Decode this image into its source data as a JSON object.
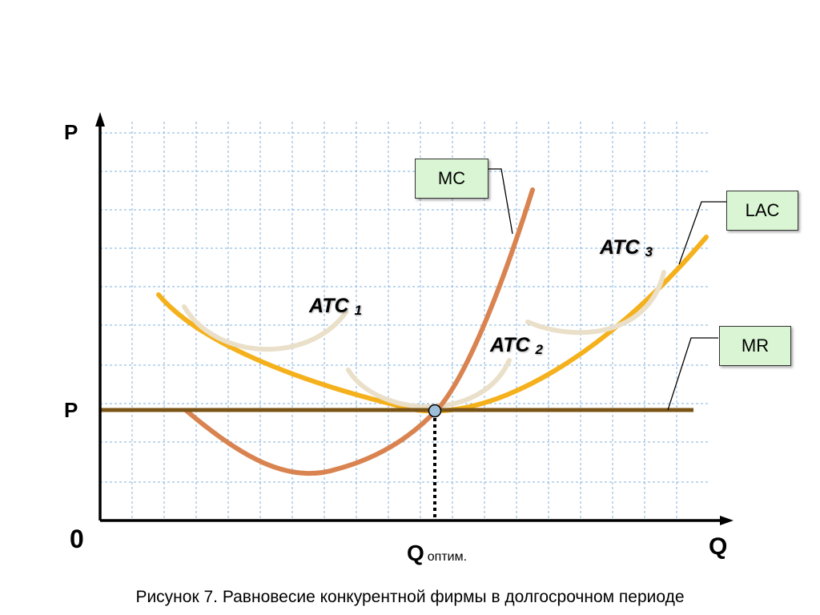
{
  "axes": {
    "y_label_top": "P",
    "y_label_price": "P",
    "origin": "0",
    "x_label": "Q",
    "x_opt_main": "Q",
    "x_opt_sub": "оптим."
  },
  "curves": {
    "mc": {
      "label": "MC",
      "color": "#d98350"
    },
    "lac": {
      "label": "LAC",
      "color": "#f5b11c"
    },
    "mr": {
      "label": "MR",
      "color": "#7a5416"
    },
    "atc1": {
      "name": "ATC",
      "index": "1",
      "color": "#eadfc9"
    },
    "atc2": {
      "name": "ATC",
      "index": "2",
      "color": "#eadfc9"
    },
    "atc3": {
      "name": "ATC",
      "index": "3",
      "color": "#eadfc9"
    }
  },
  "equilibrium": {
    "marker_color": "#9ebfdc",
    "dotted_drop": true
  },
  "grid": {
    "visible": true,
    "color": "#7fb1de"
  },
  "caption": "Рисунок 7. Равновесие конкурентной фирмы в долгосрочном периоде"
}
